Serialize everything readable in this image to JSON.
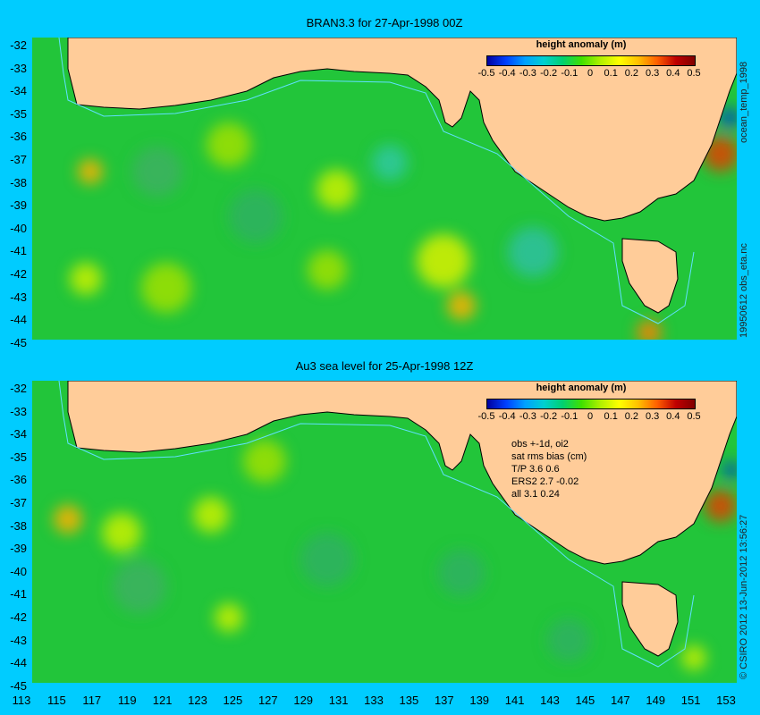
{
  "panels": [
    {
      "title": "BRAN3.3 for 27-Apr-1998 00Z",
      "side_label": "19950612 obs_eta.nc",
      "side_label2": "ocean_temp_1998"
    },
    {
      "title": "Au3 sea level  for 25-Apr-1998 12Z",
      "side_label": "© CSIRO 2012  13-Jun-2012 13:56:27",
      "stats": [
        "obs +-1d, oi2",
        "sat rms bias (cm)",
        "T/P  3.6 0.6",
        "ERS2 2.7 -0.02",
        "all 3.1 0.24"
      ]
    }
  ],
  "legend": {
    "title": "height anomaly (m)",
    "ticks": [
      "-0.5",
      "-0.4",
      "-0.3",
      "-0.2",
      "-0.1",
      "0",
      "0.1",
      "0.2",
      "0.3",
      "0.4",
      "0.5"
    ]
  },
  "lat_labels": [
    "-32",
    "-33",
    "-34",
    "-35",
    "-36",
    "-37",
    "-38",
    "-39",
    "-40",
    "-41",
    "-42",
    "-43",
    "-44",
    "-45"
  ],
  "lon_labels": [
    "113",
    "115",
    "117",
    "119",
    "121",
    "123",
    "125",
    "127",
    "129",
    "131",
    "133",
    "135",
    "137",
    "139",
    "141",
    "143",
    "145",
    "147",
    "149",
    "151",
    "153"
  ],
  "colors": {
    "background": "#00ccff",
    "land": "#ffcc99",
    "ocean_base": "#22c53a"
  }
}
